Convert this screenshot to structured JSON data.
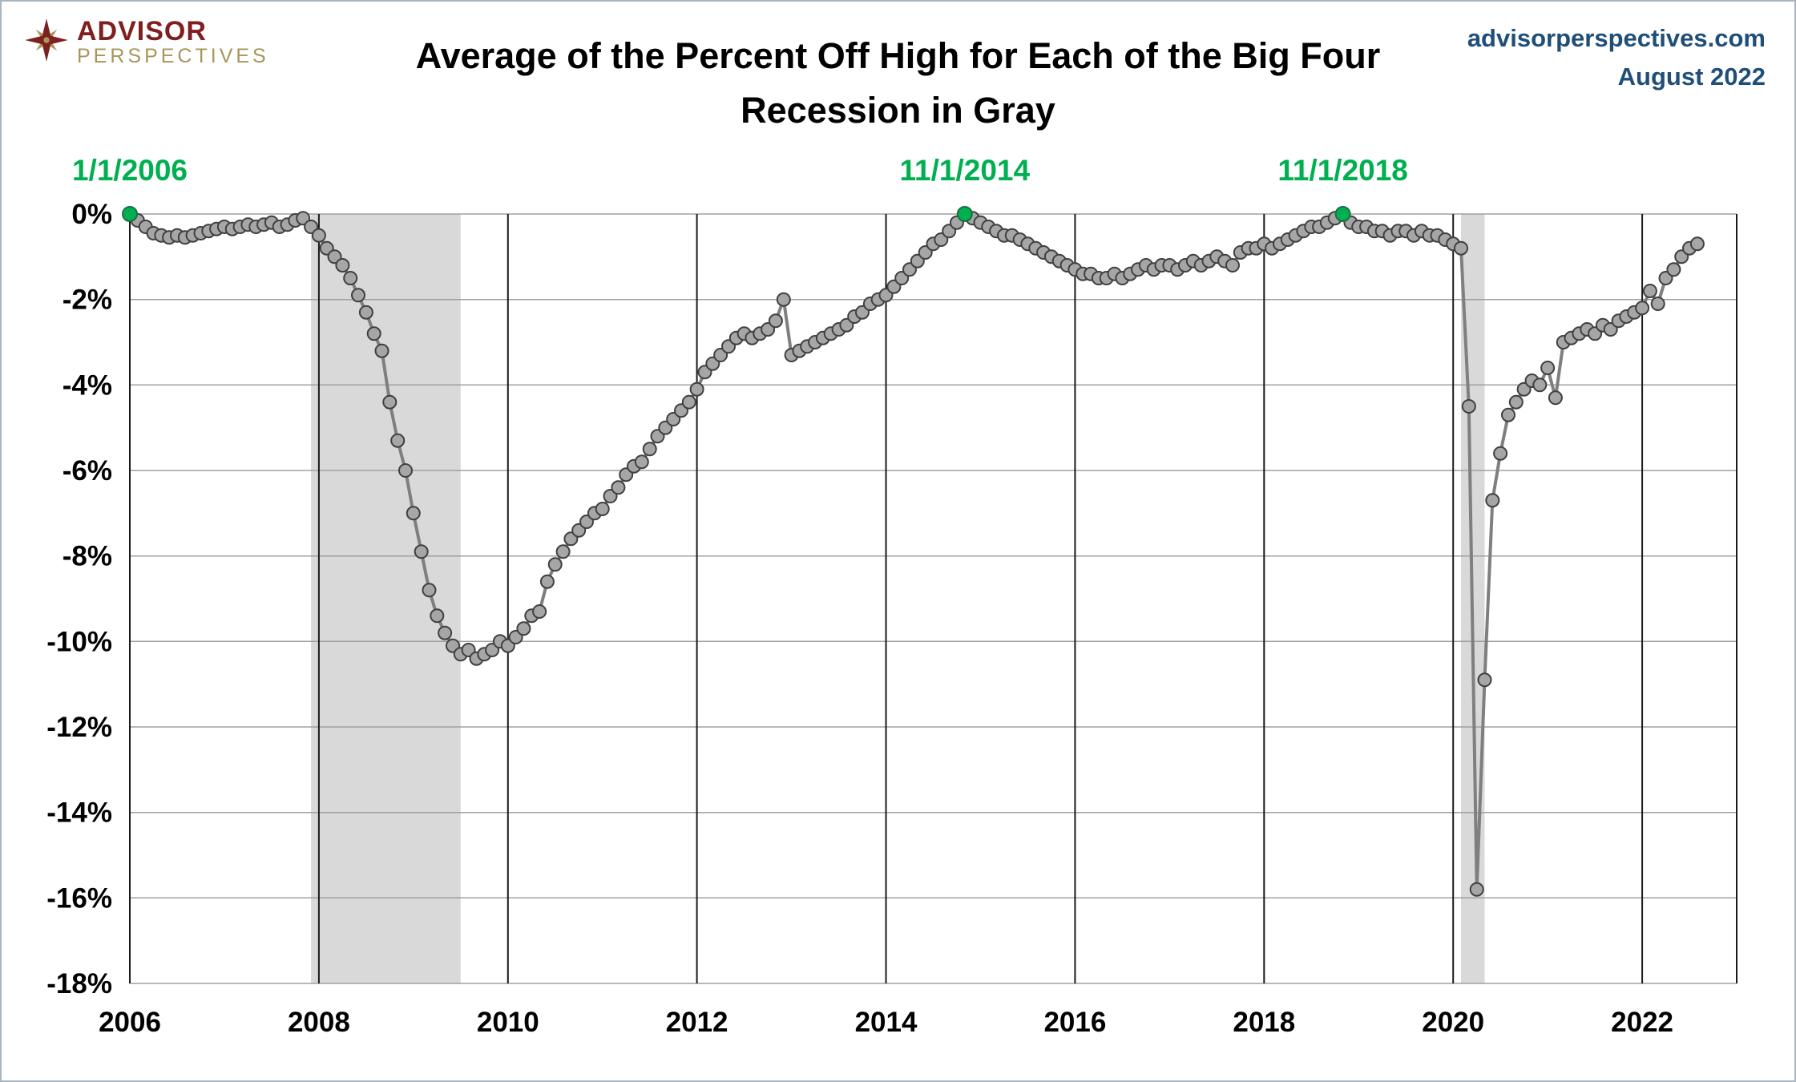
{
  "header": {
    "logo": {
      "line1": "ADVISOR",
      "line2": "PERSPECTIVES"
    },
    "title_line1": "Average of the Percent Off High for Each of the Big Four",
    "title_line2": "Recession in Gray",
    "site": "advisorperspectives.com",
    "date": "August 2022"
  },
  "chart_data": {
    "type": "line",
    "title": "Average of the Percent Off High for Each of the Big Four",
    "subtitle": "Recession in Gray",
    "x_unit": "monthly observations, decimal years",
    "ylabel": "Percent off high",
    "start_year": 2006,
    "xlim": [
      2006,
      2023
    ],
    "ylim": [
      -18,
      0
    ],
    "grid": true,
    "legend": "none",
    "x_tick_values": [
      2006,
      2008,
      2010,
      2012,
      2014,
      2016,
      2018,
      2020,
      2022
    ],
    "x_tick_labels": [
      "2006",
      "2008",
      "2010",
      "2012",
      "2014",
      "2016",
      "2018",
      "2020",
      "2022"
    ],
    "y_tick_values": [
      0,
      -2,
      -4,
      -6,
      -8,
      -10,
      -12,
      -14,
      -16,
      -18
    ],
    "y_tick_labels": [
      "0%",
      "-2%",
      "-4%",
      "-6%",
      "-8%",
      "-10%",
      "-12%",
      "-14%",
      "-16%",
      "-18%"
    ],
    "values": [
      0.0,
      -0.15,
      -0.3,
      -0.45,
      -0.5,
      -0.55,
      -0.5,
      -0.55,
      -0.5,
      -0.45,
      -0.4,
      -0.35,
      -0.3,
      -0.35,
      -0.3,
      -0.25,
      -0.3,
      -0.25,
      -0.2,
      -0.3,
      -0.25,
      -0.15,
      -0.1,
      -0.3,
      -0.5,
      -0.8,
      -1.0,
      -1.2,
      -1.5,
      -1.9,
      -2.3,
      -2.8,
      -3.2,
      -4.4,
      -5.3,
      -6.0,
      -7.0,
      -7.9,
      -8.8,
      -9.4,
      -9.8,
      -10.1,
      -10.3,
      -10.2,
      -10.4,
      -10.3,
      -10.2,
      -10.0,
      -10.1,
      -9.9,
      -9.7,
      -9.4,
      -9.3,
      -8.6,
      -8.2,
      -7.9,
      -7.6,
      -7.4,
      -7.2,
      -7.0,
      -6.9,
      -6.6,
      -6.4,
      -6.1,
      -5.9,
      -5.8,
      -5.5,
      -5.2,
      -5.0,
      -4.8,
      -4.6,
      -4.4,
      -4.1,
      -3.7,
      -3.5,
      -3.3,
      -3.1,
      -2.9,
      -2.8,
      -2.9,
      -2.8,
      -2.7,
      -2.5,
      -2.0,
      -3.3,
      -3.2,
      -3.1,
      -3.0,
      -2.9,
      -2.8,
      -2.7,
      -2.6,
      -2.4,
      -2.3,
      -2.1,
      -2.0,
      -1.9,
      -1.7,
      -1.5,
      -1.3,
      -1.1,
      -0.9,
      -0.7,
      -0.6,
      -0.4,
      -0.2,
      0.0,
      -0.1,
      -0.2,
      -0.3,
      -0.4,
      -0.5,
      -0.5,
      -0.6,
      -0.7,
      -0.8,
      -0.9,
      -1.0,
      -1.1,
      -1.2,
      -1.3,
      -1.4,
      -1.4,
      -1.5,
      -1.5,
      -1.4,
      -1.5,
      -1.4,
      -1.3,
      -1.2,
      -1.3,
      -1.2,
      -1.2,
      -1.3,
      -1.2,
      -1.1,
      -1.2,
      -1.1,
      -1.0,
      -1.1,
      -1.2,
      -0.9,
      -0.8,
      -0.8,
      -0.7,
      -0.8,
      -0.7,
      -0.6,
      -0.5,
      -0.4,
      -0.3,
      -0.3,
      -0.2,
      -0.1,
      0.0,
      -0.2,
      -0.3,
      -0.3,
      -0.4,
      -0.4,
      -0.5,
      -0.4,
      -0.4,
      -0.5,
      -0.4,
      -0.5,
      -0.5,
      -0.6,
      -0.7,
      -0.8,
      -4.5,
      -15.8,
      -10.9,
      -6.7,
      -5.6,
      -4.7,
      -4.4,
      -4.1,
      -3.9,
      -4.0,
      -3.6,
      -4.3,
      -3.0,
      -2.9,
      -2.8,
      -2.7,
      -2.8,
      -2.6,
      -2.7,
      -2.5,
      -2.4,
      -2.3,
      -2.2,
      -1.8,
      -2.1,
      -1.5,
      -1.3,
      -1.0,
      -0.8,
      -0.7
    ],
    "green_point_indices": [
      0,
      106,
      154
    ],
    "annotations": [
      {
        "label": "1/1/2006",
        "point_index": 0
      },
      {
        "label": "11/1/2014",
        "point_index": 106
      },
      {
        "label": "11/1/2018",
        "point_index": 154
      }
    ],
    "recession_bands": [
      {
        "start": 2007.917,
        "end": 2009.5
      },
      {
        "start": 2020.083,
        "end": 2020.333
      }
    ],
    "colors": {
      "line": "#7f7f7f",
      "marker_fill": "#a6a6a6",
      "marker_stroke": "#404040",
      "highlight": "#00B050",
      "highlight_stroke": "#1d6f42",
      "recession_band": "#d9d9d9",
      "h_grid": "#a0a0a0",
      "v_grid": "#1a1a1a",
      "annotation": "#00B050",
      "source_text": "#1F4E79",
      "logo_red": "#7f1f1f",
      "logo_gold": "#a8965a"
    }
  }
}
